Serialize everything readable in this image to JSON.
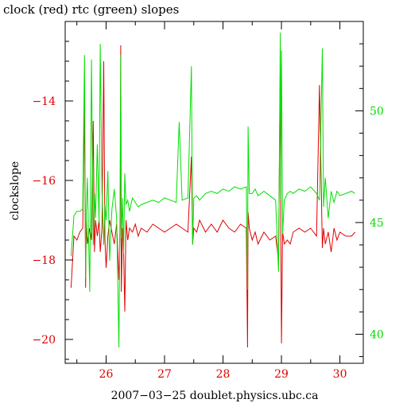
{
  "chart_data": {
    "type": "line",
    "title": "clock (red) rtc (green) slopes",
    "xlabel": "2007−03−25 doublet.physics.ubc.ca",
    "ylabel_left": "clockslope",
    "xlim": [
      25.3,
      30.4
    ],
    "ylim_left": [
      -20.6,
      -12.0
    ],
    "ylim_right": [
      38.7,
      54.0
    ],
    "x_ticks": [
      26,
      27,
      28,
      29,
      30
    ],
    "y_ticks_left": [
      -14,
      -16,
      -18,
      -20
    ],
    "y_ticks_right": [
      40,
      45,
      50
    ],
    "grid": false,
    "colors": {
      "clock": "#e00000",
      "rtc": "#00e000",
      "axis": "#000000"
    },
    "series": [
      {
        "axis": "left",
        "color": "#e00000",
        "x": [
          25.4,
          25.45,
          25.5,
          25.55,
          25.6,
          25.63,
          25.65,
          25.66,
          25.68,
          25.72,
          25.75,
          25.78,
          25.8,
          25.82,
          25.85,
          25.88,
          25.9,
          25.93,
          25.96,
          25.98,
          26.0,
          26.03,
          26.06,
          26.1,
          26.14,
          26.18,
          26.22,
          26.24,
          26.25,
          26.26,
          26.28,
          26.3,
          26.32,
          26.34,
          26.37,
          26.4,
          26.45,
          26.5,
          26.55,
          26.6,
          26.7,
          26.8,
          26.9,
          27.0,
          27.1,
          27.2,
          27.3,
          27.4,
          27.46,
          27.48,
          27.5,
          27.55,
          27.6,
          27.7,
          27.8,
          27.9,
          28.0,
          28.1,
          28.2,
          28.3,
          28.4,
          28.42,
          28.43,
          28.45,
          28.5,
          28.55,
          28.6,
          28.7,
          28.8,
          28.9,
          28.95,
          28.98,
          28.99,
          29.0,
          29.02,
          29.05,
          29.1,
          29.15,
          29.2,
          29.3,
          29.4,
          29.5,
          29.6,
          29.65,
          29.7,
          29.72,
          29.75,
          29.8,
          29.85,
          29.9,
          29.95,
          30.0,
          30.1,
          30.2,
          30.26
        ],
        "y": [
          -18.7,
          -17.4,
          -17.5,
          -17.3,
          -17.2,
          -14.0,
          -18.7,
          -17.0,
          -17.6,
          -17.2,
          -17.5,
          -14.5,
          -17.8,
          -17.0,
          -17.4,
          -17.0,
          -17.8,
          -17.2,
          -13.0,
          -17.5,
          -18.2,
          -17.4,
          -17.0,
          -17.3,
          -17.6,
          -17.1,
          -18.5,
          -17.2,
          -12.6,
          -18.8,
          -17.2,
          -17.8,
          -19.3,
          -17.0,
          -17.5,
          -17.2,
          -17.3,
          -17.1,
          -17.4,
          -17.2,
          -17.3,
          -17.1,
          -17.2,
          -17.3,
          -17.2,
          -17.1,
          -17.2,
          -17.3,
          -15.4,
          -17.6,
          -17.2,
          -17.3,
          -17.0,
          -17.3,
          -17.1,
          -17.3,
          -17.0,
          -17.2,
          -17.3,
          -17.1,
          -17.2,
          -20.2,
          -16.8,
          -17.2,
          -17.5,
          -17.3,
          -17.6,
          -17.3,
          -17.5,
          -17.4,
          -18.0,
          -13.1,
          -17.5,
          -20.1,
          -17.3,
          -17.6,
          -17.5,
          -17.6,
          -17.3,
          -17.2,
          -17.3,
          -17.2,
          -17.4,
          -13.6,
          -17.7,
          -17.2,
          -17.6,
          -17.3,
          -17.8,
          -17.2,
          -17.5,
          -17.3,
          -17.4,
          -17.4,
          -17.3
        ]
      },
      {
        "axis": "right",
        "color": "#00e000",
        "x": [
          25.4,
          25.45,
          25.5,
          25.55,
          25.6,
          25.63,
          25.65,
          25.66,
          25.68,
          25.72,
          25.75,
          25.78,
          25.8,
          25.82,
          25.85,
          25.88,
          25.9,
          25.93,
          25.96,
          25.98,
          26.0,
          26.03,
          26.06,
          26.1,
          26.14,
          26.18,
          26.22,
          26.24,
          26.25,
          26.26,
          26.28,
          26.3,
          26.32,
          26.34,
          26.37,
          26.4,
          26.45,
          26.5,
          26.55,
          26.6,
          26.7,
          26.8,
          26.9,
          27.0,
          27.1,
          27.2,
          27.25,
          27.3,
          27.4,
          27.46,
          27.48,
          27.5,
          27.55,
          27.6,
          27.7,
          27.8,
          27.9,
          28.0,
          28.1,
          28.2,
          28.3,
          28.4,
          28.42,
          28.43,
          28.45,
          28.5,
          28.55,
          28.6,
          28.7,
          28.8,
          28.9,
          28.95,
          28.98,
          28.99,
          29.0,
          29.02,
          29.05,
          29.1,
          29.15,
          29.2,
          29.3,
          29.4,
          29.5,
          29.6,
          29.65,
          29.7,
          29.72,
          29.75,
          29.8,
          29.85,
          29.9,
          29.95,
          30.0,
          30.1,
          30.2,
          30.26
        ],
        "y": [
          43.5,
          45.3,
          45.5,
          45.5,
          45.6,
          52.5,
          42.5,
          45.4,
          47.0,
          41.9,
          52.3,
          44.0,
          46.3,
          45.2,
          48.5,
          45.0,
          53.0,
          46.4,
          44.0,
          45.8,
          45.1,
          47.3,
          43.3,
          45.6,
          46.5,
          45.2,
          39.4,
          46.0,
          52.5,
          44.3,
          46.1,
          43.6,
          47.2,
          45.8,
          46.0,
          45.5,
          46.1,
          45.9,
          45.7,
          45.8,
          45.9,
          46.0,
          45.9,
          46.1,
          46.0,
          45.9,
          49.5,
          46.0,
          46.1,
          52.0,
          44.0,
          46.1,
          46.2,
          46.0,
          46.3,
          46.4,
          46.3,
          46.5,
          46.4,
          46.6,
          46.5,
          46.6,
          42.0,
          49.3,
          46.3,
          46.3,
          46.5,
          46.2,
          46.4,
          46.2,
          46.0,
          42.8,
          53.5,
          46.0,
          52.7,
          44.5,
          46.0,
          46.3,
          46.4,
          46.3,
          46.5,
          46.4,
          46.6,
          46.3,
          46.0,
          52.8,
          45.7,
          47.0,
          45.2,
          46.4,
          45.9,
          46.4,
          46.2,
          46.3,
          46.4,
          46.3
        ]
      }
    ]
  }
}
